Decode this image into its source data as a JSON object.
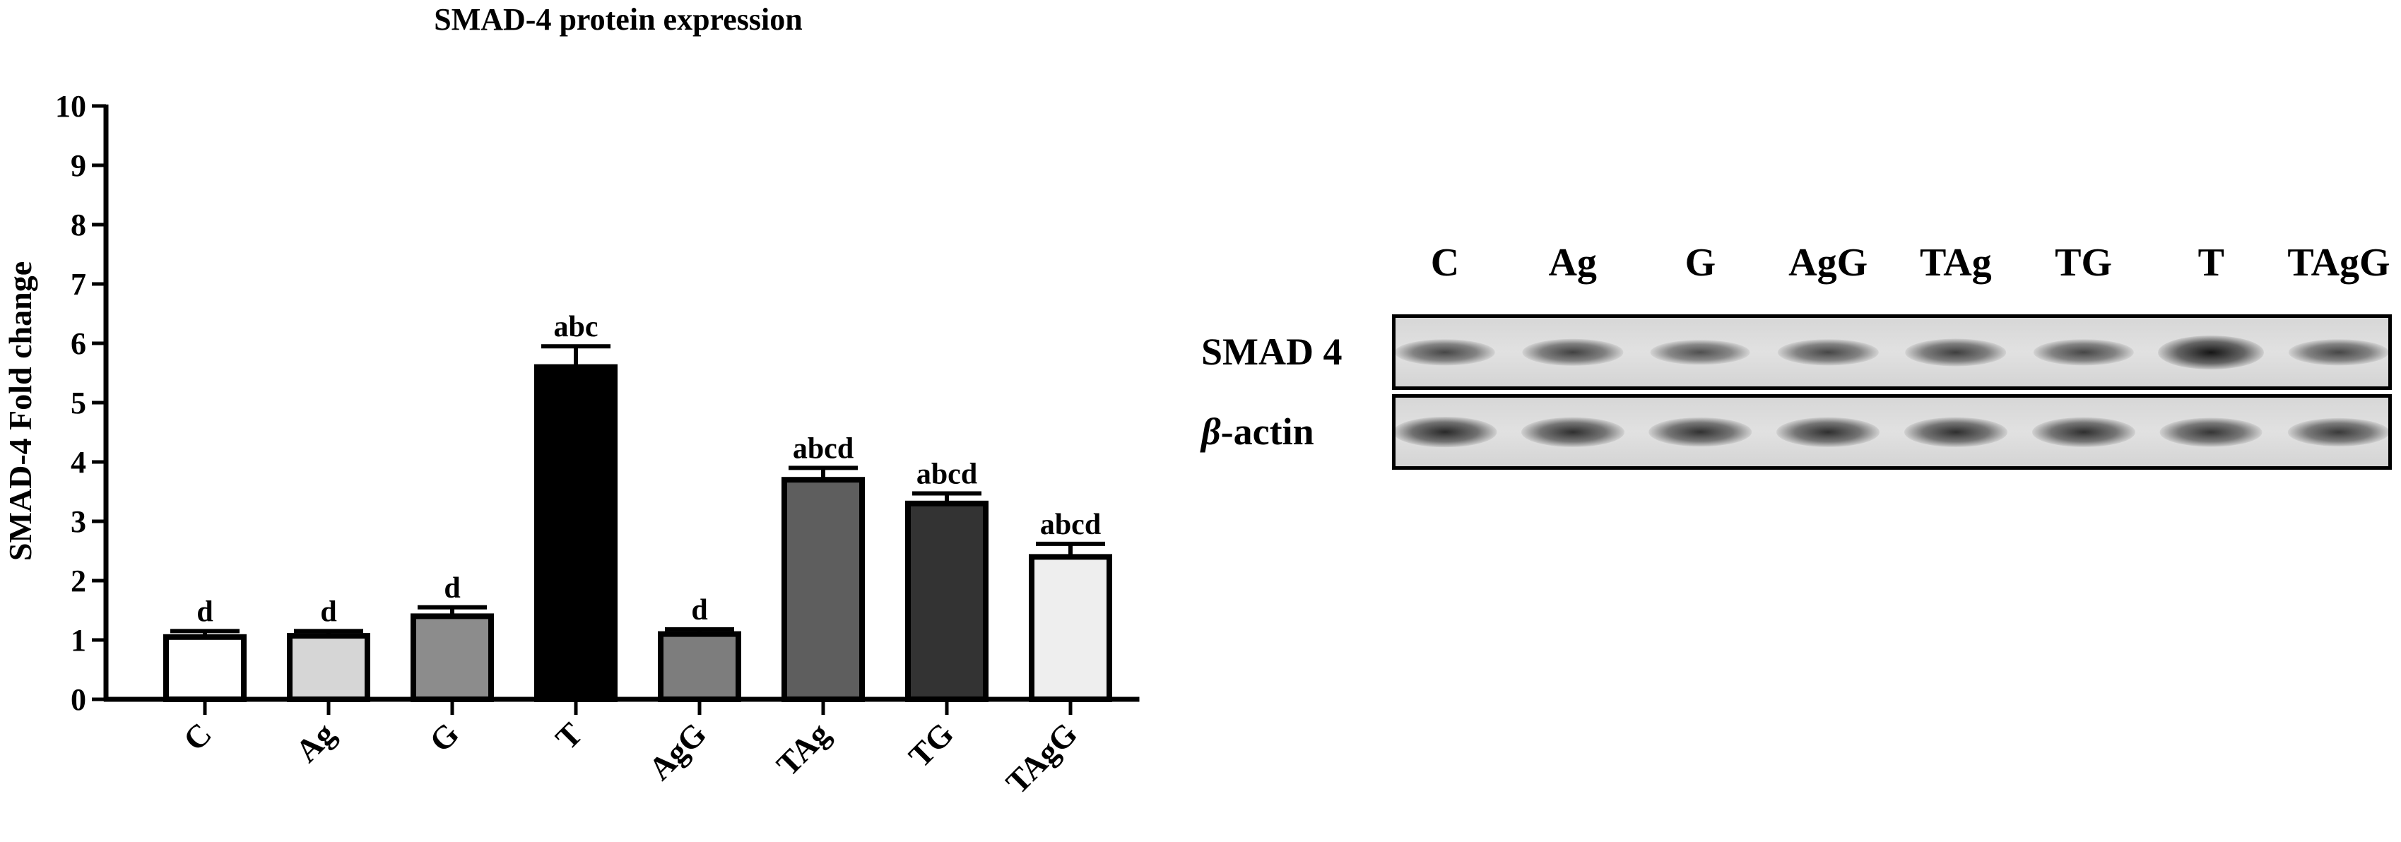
{
  "chart_data": {
    "type": "bar",
    "title": "SMAD-4 protein expression",
    "ylabel": "SMAD-4 Fold change",
    "xlabel": "",
    "ylim": [
      0,
      10
    ],
    "yticks": [
      "0",
      "1",
      "2",
      "3",
      "4",
      "5",
      "6",
      "7",
      "8",
      "9",
      "10"
    ],
    "categories": [
      "C",
      "Ag",
      "G",
      "T",
      "AgG",
      "TAg",
      "TG",
      "TAgG"
    ],
    "values": [
      1.05,
      1.07,
      1.4,
      5.6,
      1.1,
      3.7,
      3.3,
      2.4
    ],
    "errors": [
      0.1,
      0.08,
      0.15,
      0.35,
      0.08,
      0.2,
      0.17,
      0.22
    ],
    "significance_labels": [
      "d",
      "d",
      "d",
      "abc",
      "d",
      "abcd",
      "abcd",
      "abcd"
    ],
    "bar_colors": [
      "#ffffff",
      "#d6d6d6",
      "#8c8c8c",
      "#000000",
      "#7d7d7d",
      "#5e5e5e",
      "#333333",
      "#eeeeee"
    ],
    "grid": false
  },
  "blot": {
    "lanes": [
      "C",
      "Ag",
      "G",
      "AgG",
      "TAg",
      "TG",
      "T",
      "TAgG"
    ],
    "rows": [
      {
        "label_main": "SMAD 4",
        "label_prefix": "",
        "intensity": [
          0.62,
          0.66,
          0.55,
          0.62,
          0.68,
          0.62,
          1.0,
          0.62
        ]
      },
      {
        "label_main": "-actin",
        "label_prefix": "β",
        "intensity": [
          0.85,
          0.8,
          0.78,
          0.8,
          0.8,
          0.8,
          0.75,
          0.72
        ]
      }
    ]
  }
}
